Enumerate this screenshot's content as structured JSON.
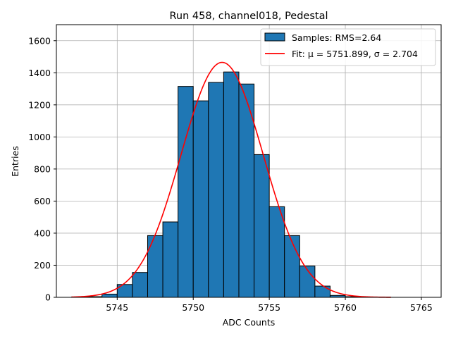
{
  "chart_data": {
    "type": "bar",
    "title": "Run 458, channel018, Pedestal",
    "xlabel": "ADC Counts",
    "ylabel": "Entries",
    "xlim": [
      5741.0,
      5766.3
    ],
    "ylim": [
      0,
      1700
    ],
    "x_ticks": [
      5745,
      5750,
      5755,
      5760,
      5765
    ],
    "y_ticks": [
      0,
      200,
      400,
      600,
      800,
      1000,
      1200,
      1400,
      1600
    ],
    "grid": true,
    "legend_position": "top-right",
    "histogram": {
      "name": "Samples: RMS=2.64",
      "color": "#1f77b4",
      "bin_edges": [
        5742,
        5743,
        5744,
        5745,
        5746,
        5747,
        5748,
        5749,
        5750,
        5751,
        5752,
        5753,
        5754,
        5755,
        5756,
        5757,
        5758,
        5759,
        5760,
        5761,
        5762
      ],
      "values": [
        2,
        4,
        20,
        80,
        155,
        385,
        470,
        1315,
        1225,
        1340,
        1405,
        1330,
        890,
        565,
        385,
        195,
        70,
        12,
        4,
        1
      ]
    },
    "fit": {
      "name": "Fit: μ = 5751.899, σ = 2.704",
      "color": "#ff0000",
      "mu": 5751.899,
      "sigma": 2.704,
      "amplitude": 1465,
      "range": [
        5742,
        5763
      ]
    }
  }
}
